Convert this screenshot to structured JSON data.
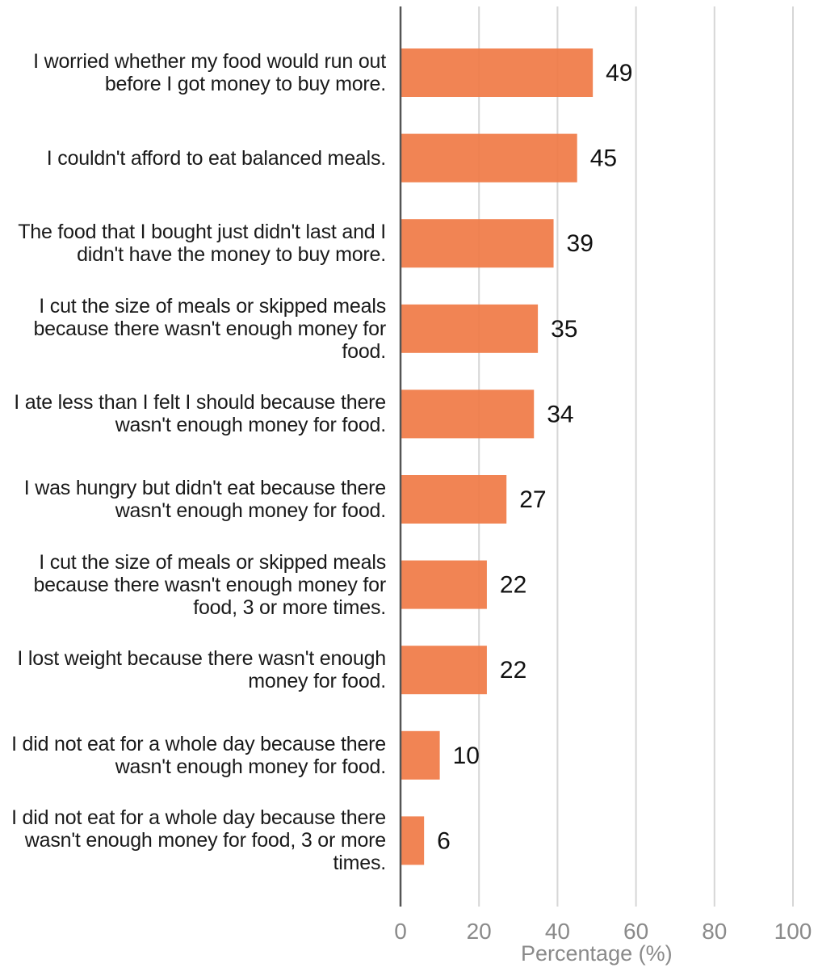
{
  "chart_data": {
    "type": "bar",
    "orientation": "horizontal",
    "title": "",
    "xlabel": "Percentage (%)",
    "ylabel": "",
    "xlim": [
      0,
      100
    ],
    "xticks": [
      0,
      20,
      40,
      60,
      80,
      100
    ],
    "grid": true,
    "legend": "none",
    "bar_color": "#f07a45",
    "categories": [
      "I worried whether my food would run out before I got money to buy more.",
      "I couldn't afford to eat balanced meals.",
      "The food that I bought just didn't last and I didn't have the money to buy more.",
      "I cut the size of meals or skipped meals because there wasn't enough money for food.",
      "I ate less than I felt I should because there wasn't enough money for food.",
      "I was hungry but didn't eat because there wasn't enough money for food.",
      "I cut the size of meals or skipped meals because there wasn't enough money for food, 3 or more times.",
      "I lost weight because there wasn't enough money for food.",
      "I did not eat for a whole day because there wasn't enough money for food.",
      "I did not eat for a whole day because there wasn't enough money for food, 3 or more times."
    ],
    "values": [
      49,
      45,
      39,
      35,
      34,
      27,
      22,
      22,
      10,
      6
    ],
    "value_labels": [
      "49",
      "45",
      "39",
      "35",
      "34",
      "27",
      "22",
      "22",
      "10",
      "6"
    ]
  }
}
